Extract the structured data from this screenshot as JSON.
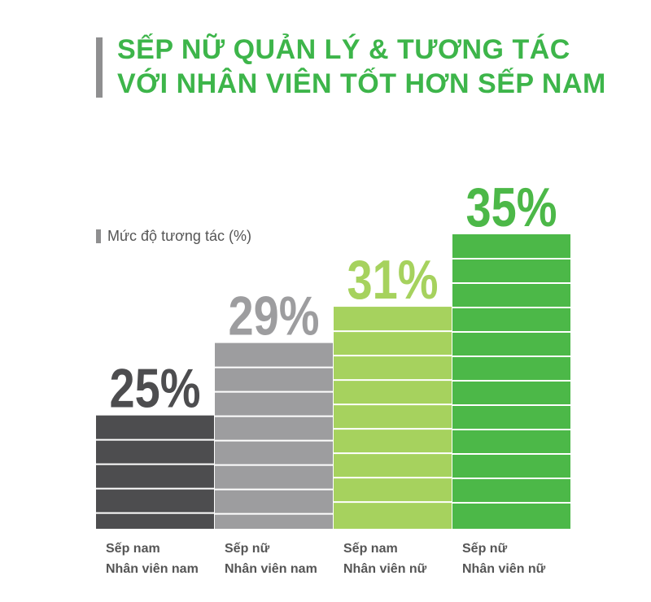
{
  "title": {
    "line1": "SẾP NỮ QUẢN LÝ & TƯƠNG TÁC",
    "line2": "VỚI NHÂN VIÊN TỐT HƠN SẾP NAM"
  },
  "legend": {
    "label": "Mức độ tương tác (%)"
  },
  "colors": {
    "title": "#3db54a",
    "accent_gray": "#8f8f90",
    "bar1": "#4d4d4f",
    "bar2": "#9d9d9f",
    "bar3": "#a6d25e",
    "bar4": "#4cb848",
    "stripe": "#ffffff"
  },
  "chart_data": {
    "type": "bar",
    "title": "SẾP NỮ QUẢN LÝ & TƯƠNG TÁC VỚI NHÂN VIÊN TỐT HƠN SẾP NAM",
    "ylabel": "Mức độ tương tác (%)",
    "ylim": [
      20,
      35
    ],
    "grid": false,
    "legend_position": "left",
    "categories": [
      [
        "Sếp nam",
        "Nhân viên nam"
      ],
      [
        "Sếp nữ",
        "Nhân viên nam"
      ],
      [
        "Sếp nam",
        "Nhân viên nữ"
      ],
      [
        "Sếp nữ",
        "Nhân viên nữ"
      ]
    ],
    "values": [
      25,
      29,
      31,
      35
    ],
    "value_labels": [
      "25%",
      "29%",
      "31%",
      "35%"
    ]
  }
}
